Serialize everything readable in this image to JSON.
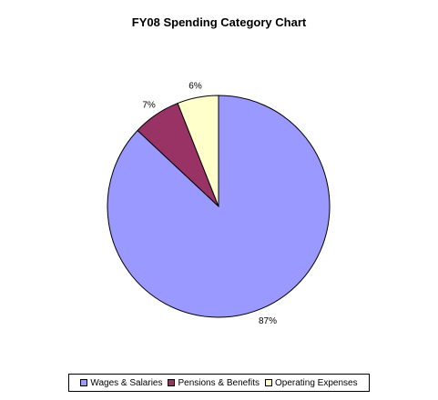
{
  "chart_data": {
    "type": "pie",
    "title": "FY08 Spending Category Chart",
    "categories": [
      "Wages & Salaries",
      "Pensions & Benefits",
      "Operating Expenses"
    ],
    "values": [
      87,
      7,
      6
    ],
    "labels": [
      "87%",
      "7%",
      "6%"
    ],
    "colors": [
      "#9999ff",
      "#993366",
      "#ffffcc"
    ],
    "legend_position": "bottom"
  }
}
